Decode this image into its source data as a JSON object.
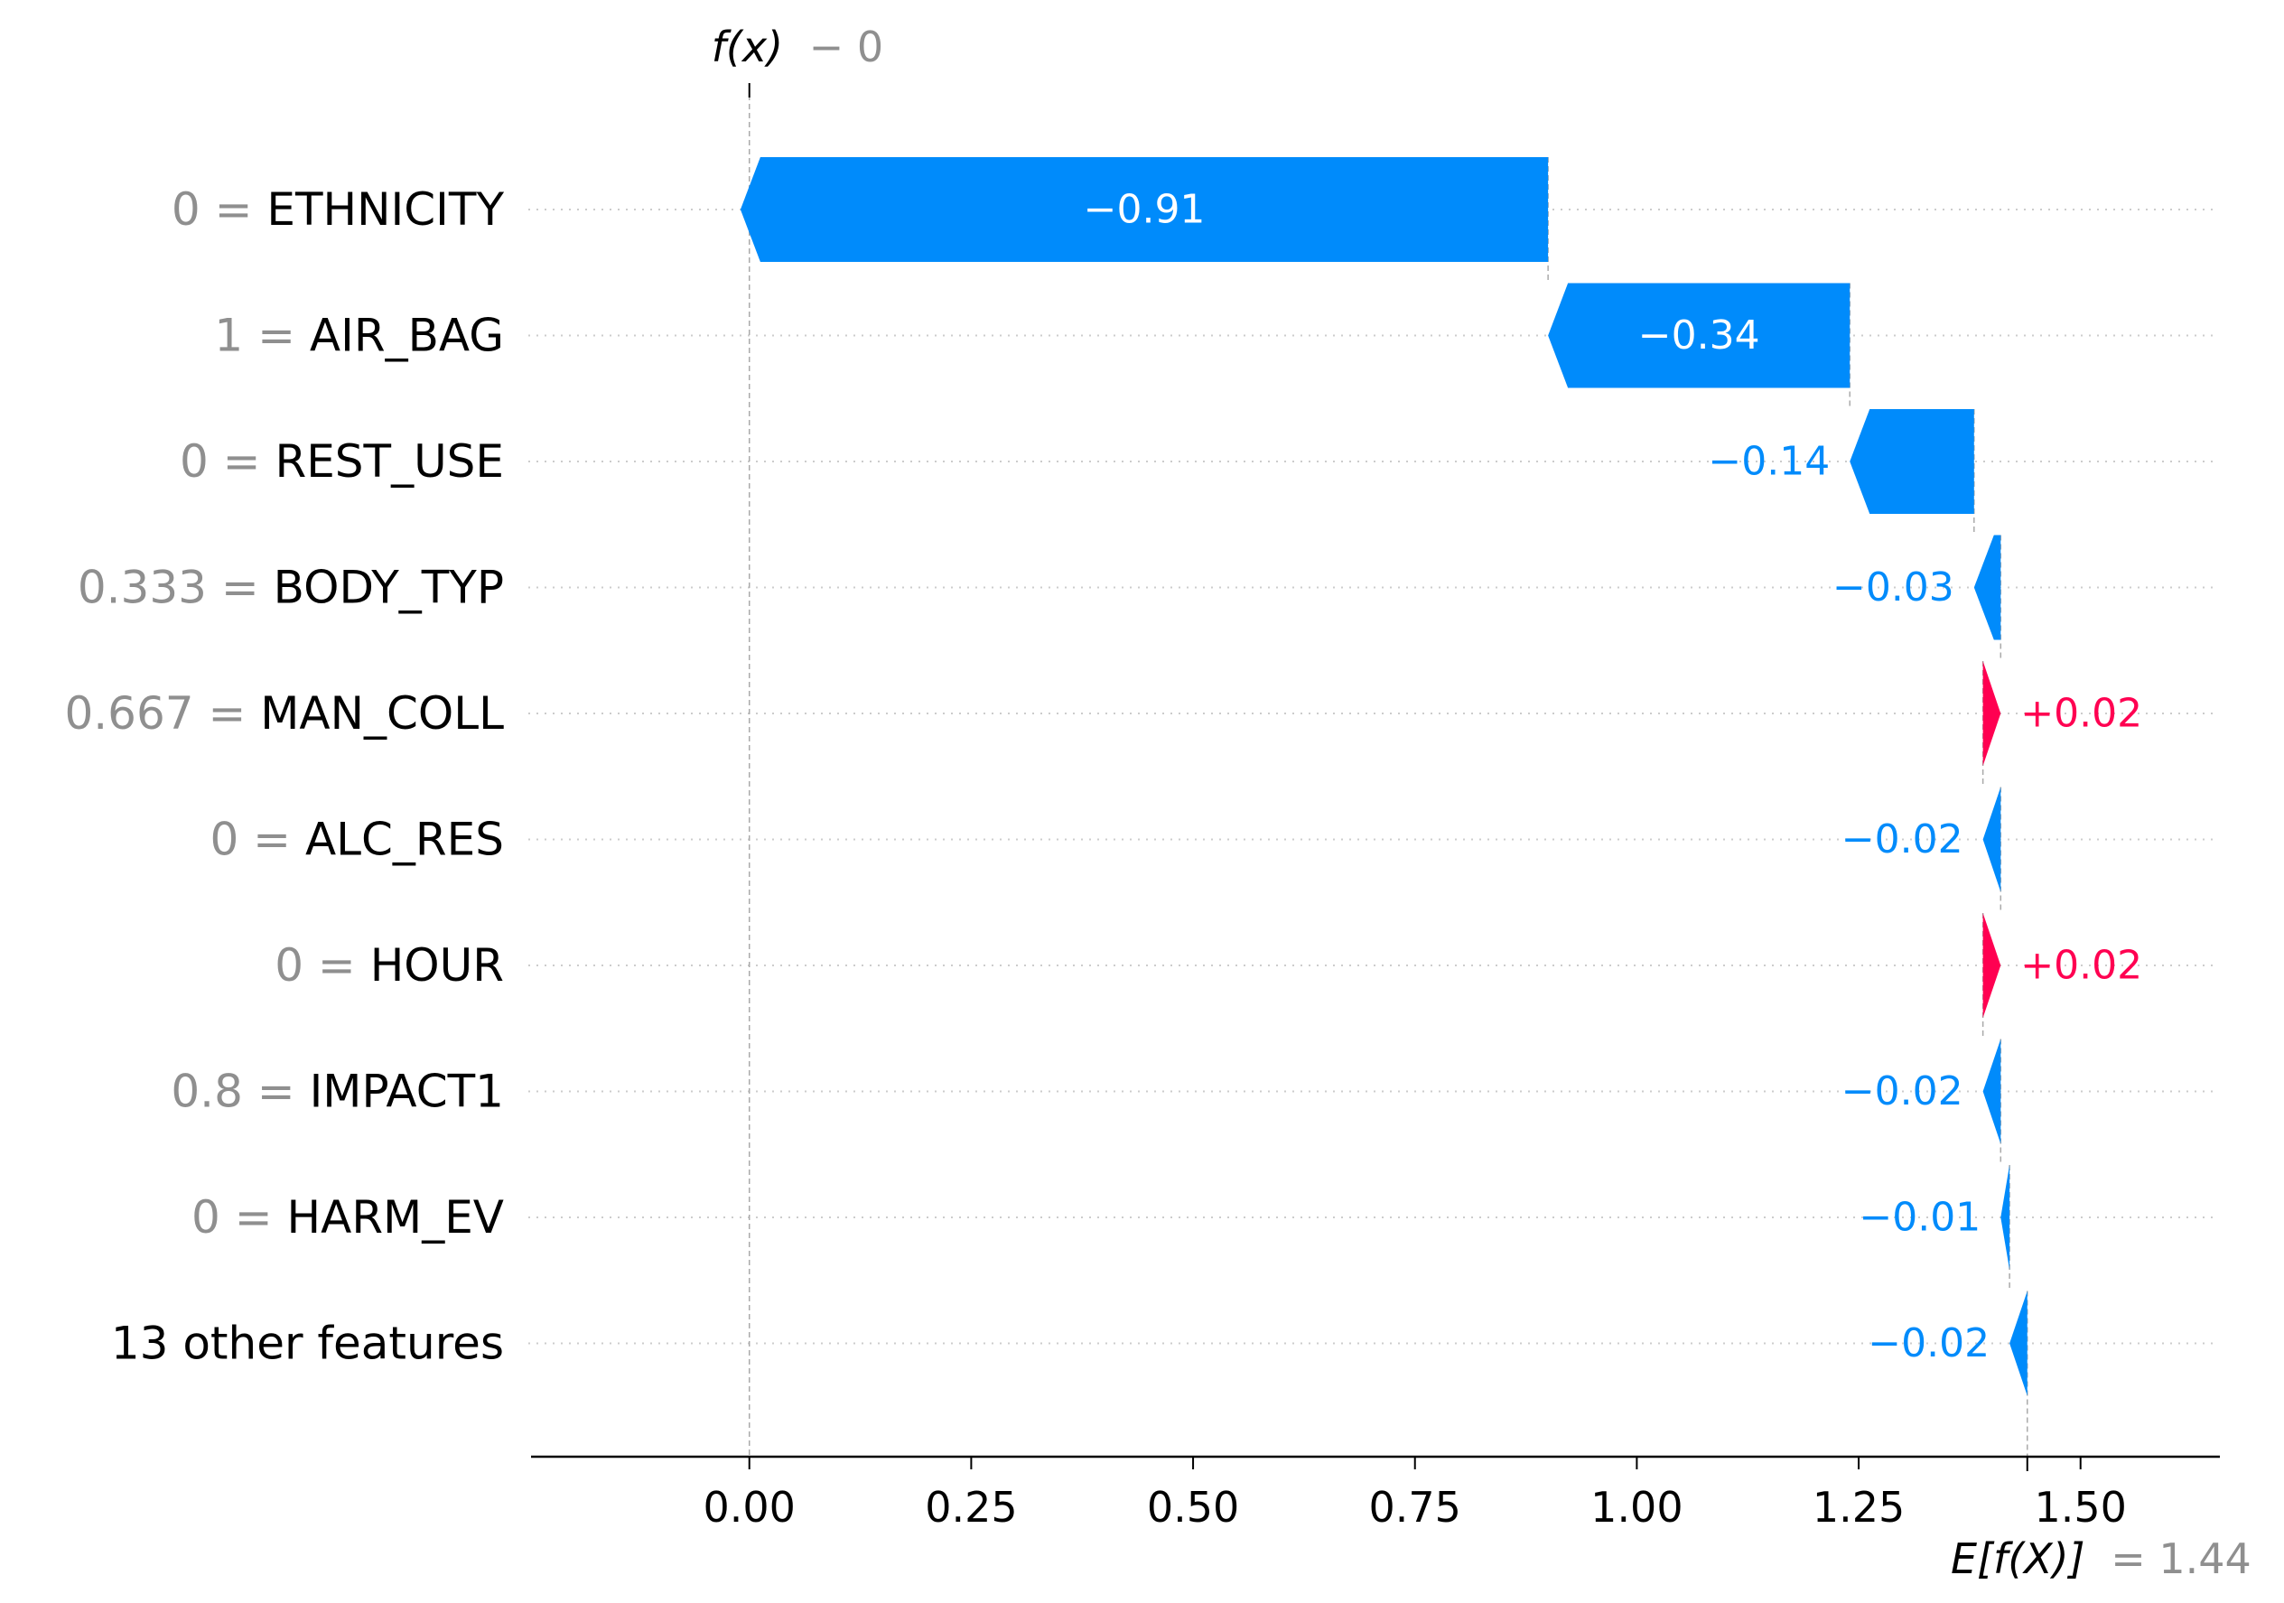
{
  "chart_data": {
    "type": "waterfall",
    "f_x": {
      "label": "f(x)",
      "value": "− 0"
    },
    "expected": {
      "label": "E[f(X)]",
      "value": "= 1.44"
    },
    "base_value": 1.44,
    "output_value": 0.0,
    "features": [
      {
        "value_label": "0",
        "name": "ETHNICITY",
        "contribution": -0.91,
        "text": "−0.91"
      },
      {
        "value_label": "1",
        "name": "AIR_BAG",
        "contribution": -0.34,
        "text": "−0.34"
      },
      {
        "value_label": "0",
        "name": "REST_USE",
        "contribution": -0.14,
        "text": "−0.14"
      },
      {
        "value_label": "0.333",
        "name": "BODY_TYP",
        "contribution": -0.03,
        "text": "−0.03"
      },
      {
        "value_label": "0.667",
        "name": "MAN_COLL",
        "contribution": 0.02,
        "text": "+0.02"
      },
      {
        "value_label": "0",
        "name": "ALC_RES",
        "contribution": -0.02,
        "text": "−0.02"
      },
      {
        "value_label": "0",
        "name": "HOUR",
        "contribution": 0.02,
        "text": "+0.02"
      },
      {
        "value_label": "0.8",
        "name": "IMPACT1",
        "contribution": -0.02,
        "text": "−0.02"
      },
      {
        "value_label": "0",
        "name": "HARM_EV",
        "contribution": -0.01,
        "text": "−0.01"
      },
      {
        "value_label": "",
        "name": "13 other features",
        "contribution": -0.02,
        "text": "−0.02"
      }
    ],
    "x_ticks": [
      {
        "value": 0.0,
        "label": "0.00"
      },
      {
        "value": 0.25,
        "label": "0.25"
      },
      {
        "value": 0.5,
        "label": "0.50"
      },
      {
        "value": 0.75,
        "label": "0.75"
      },
      {
        "value": 1.0,
        "label": "1.00"
      },
      {
        "value": 1.25,
        "label": "1.25"
      },
      {
        "value": 1.5,
        "label": "1.50"
      }
    ],
    "xlim": [
      -0.246,
      1.657
    ],
    "colors": {
      "negative": "#008bfb",
      "positive": "#ff0051",
      "grey": "#8f8f8f"
    }
  }
}
